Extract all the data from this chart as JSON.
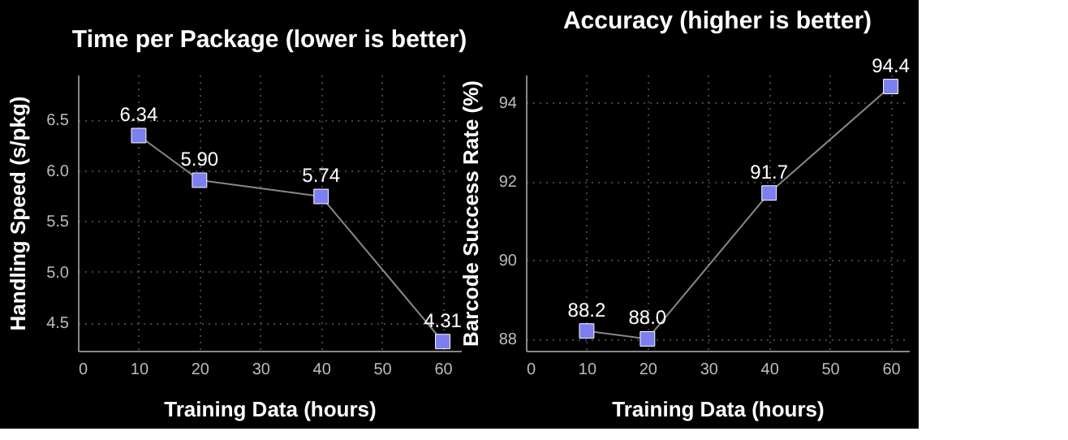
{
  "chart_data": [
    {
      "type": "line",
      "title": "Time per Package (lower is better)",
      "xlabel": "Training Data (hours)",
      "ylabel": "Handling Speed (s/pkg)",
      "x": [
        10,
        20,
        40,
        60
      ],
      "series": [
        {
          "color": "#7b7ff0",
          "values": [
            6.34,
            5.9,
            5.74,
            4.31
          ],
          "value_labels": [
            "6.34",
            "5.90",
            "5.74",
            "4.31"
          ]
        }
      ],
      "xlim": [
        0,
        63
      ],
      "xticks": [
        0,
        10,
        20,
        30,
        40,
        50,
        60
      ],
      "ylim": [
        4.22,
        6.94
      ],
      "yticks": [
        {
          "value": 4.5,
          "label": "4.5"
        },
        {
          "value": 5,
          "label": "5.0"
        },
        {
          "value": 5.5,
          "label": "5.5"
        },
        {
          "value": 6,
          "label": "6.0"
        },
        {
          "value": 6.5,
          "label": "6.5"
        }
      ],
      "grid": true,
      "marker": "square",
      "line_style": "solid"
    },
    {
      "type": "line",
      "title": "Accuracy (higher is better)",
      "xlabel": "Training Data (hours)",
      "ylabel": "Barcode Success Rate (%)",
      "x": [
        10,
        20,
        40,
        60
      ],
      "series": [
        {
          "color": "#7b7ff0",
          "values": [
            88.2,
            88.0,
            91.7,
            94.4
          ],
          "value_labels": [
            "88.2",
            "88.0",
            "91.7",
            "94.4"
          ]
        }
      ],
      "xlim": [
        0,
        63
      ],
      "xticks": [
        0,
        10,
        20,
        30,
        40,
        50,
        60
      ],
      "ylim": [
        87.7,
        94.7
      ],
      "yticks": [
        88,
        90,
        92,
        94
      ],
      "grid": true,
      "marker": "square",
      "line_style": "solid"
    }
  ]
}
